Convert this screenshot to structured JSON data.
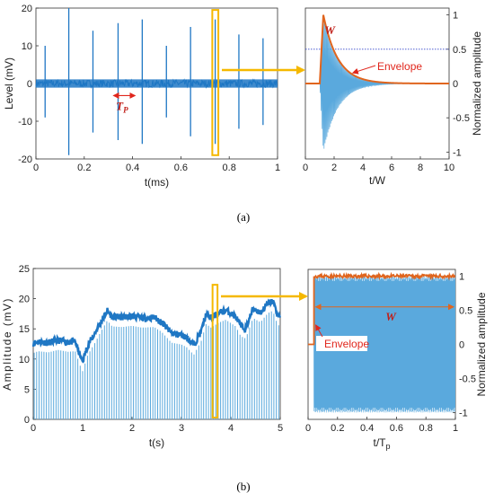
{
  "colors": {
    "signal": "#1f77c4",
    "signal_light": "#5aa9dd",
    "envelope": "#e0651e",
    "highlight": "#f5b800",
    "annotation": "#e0261c",
    "guide": "#3344cc"
  },
  "captions": {
    "a": "(a)",
    "b": "(b)"
  },
  "chart_data": [
    {
      "id": "a-left",
      "type": "line",
      "xlabel": "t(ms)",
      "ylabel": "Level (mV)",
      "xlim": [
        0,
        1
      ],
      "ylim": [
        -20,
        20
      ],
      "xticks": [
        "0",
        "0.2",
        "0.4",
        "0.6",
        "0.8",
        "1"
      ],
      "yticks": [
        "20",
        "10",
        "0",
        "-10",
        "-20"
      ],
      "baseline_noise_mV": 1,
      "pulses": [
        {
          "t": 0.038,
          "top": 10,
          "bottom": -9
        },
        {
          "t": 0.136,
          "top": 20,
          "bottom": -19
        },
        {
          "t": 0.236,
          "top": 14,
          "bottom": -13
        },
        {
          "t": 0.34,
          "top": 16,
          "bottom": -15
        },
        {
          "t": 0.44,
          "top": 17,
          "bottom": -16
        },
        {
          "t": 0.54,
          "top": 10,
          "bottom": -9
        },
        {
          "t": 0.64,
          "top": 15,
          "bottom": -14
        },
        {
          "t": 0.742,
          "top": 17,
          "bottom": -16
        },
        {
          "t": 0.84,
          "top": 13,
          "bottom": -12
        },
        {
          "t": 0.94,
          "top": 12,
          "bottom": -11
        }
      ],
      "period_label": "T",
      "period_subscript": "P",
      "highlight_x": [
        0.73,
        0.755
      ]
    },
    {
      "id": "a-right",
      "type": "line",
      "xlabel": "t/W",
      "ylabel": "Normalized amplitude",
      "xlim": [
        0,
        10
      ],
      "ylim": [
        -1.1,
        1.1
      ],
      "xticks": [
        "0",
        "2",
        "4",
        "6",
        "8",
        "10"
      ],
      "yticks": [
        "1",
        "0.5",
        "0",
        "-0.5",
        "-1"
      ],
      "onset": 1.0,
      "peak_time": 1.25,
      "decay_tau": 1.0,
      "halfmax_level": 0.5,
      "width_label": "W",
      "envelope_label": "Envelope"
    },
    {
      "id": "b-left",
      "type": "area",
      "xlabel": "t(s)",
      "ylabel": "Amplitude (mV)",
      "xlim": [
        0,
        5
      ],
      "ylim": [
        0,
        25
      ],
      "xticks": [
        "0",
        "1",
        "2",
        "3",
        "4",
        "5"
      ],
      "yticks": [
        "25",
        "20",
        "15",
        "10",
        "5",
        "0"
      ],
      "envelope_points": [
        [
          0,
          12.6
        ],
        [
          0.1,
          12.9
        ],
        [
          0.3,
          12.7
        ],
        [
          0.5,
          13.1
        ],
        [
          0.7,
          12.8
        ],
        [
          0.85,
          12.9
        ],
        [
          0.95,
          10.5
        ],
        [
          1.0,
          9.6
        ],
        [
          1.1,
          12.2
        ],
        [
          1.25,
          14.3
        ],
        [
          1.38,
          16.3
        ],
        [
          1.5,
          18.0
        ],
        [
          1.6,
          17.0
        ],
        [
          1.8,
          16.9
        ],
        [
          2.0,
          17.1
        ],
        [
          2.2,
          16.8
        ],
        [
          2.45,
          16.9
        ],
        [
          2.6,
          16.1
        ],
        [
          2.8,
          14.3
        ],
        [
          3.0,
          14.0
        ],
        [
          3.1,
          13.6
        ],
        [
          3.25,
          12.3
        ],
        [
          3.4,
          14.6
        ],
        [
          3.5,
          17.4
        ],
        [
          3.6,
          16.8
        ],
        [
          3.75,
          17.6
        ],
        [
          3.9,
          18.1
        ],
        [
          4.1,
          17.0
        ],
        [
          4.2,
          15.4
        ],
        [
          4.3,
          15.0
        ],
        [
          4.45,
          18.4
        ],
        [
          4.6,
          17.7
        ],
        [
          4.75,
          19.2
        ],
        [
          4.85,
          19.6
        ],
        [
          4.95,
          17.2
        ]
      ],
      "highlight_x": [
        3.63,
        3.73
      ]
    },
    {
      "id": "b-right",
      "type": "line",
      "xlabel": "t/T",
      "xlabel_subscript": "p",
      "ylabel": "Normalized amplitude",
      "xlim": [
        0,
        1
      ],
      "ylim": [
        -1.1,
        1.1
      ],
      "xticks": [
        "0",
        "0.2",
        "0.4",
        "0.6",
        "0.8",
        "1"
      ],
      "yticks": [
        "1",
        "0.5",
        "0",
        "-0.5",
        "-1"
      ],
      "onset": 0.04,
      "envelope_level": 1.0,
      "width_label": "W",
      "envelope_label": "Envelope"
    }
  ]
}
